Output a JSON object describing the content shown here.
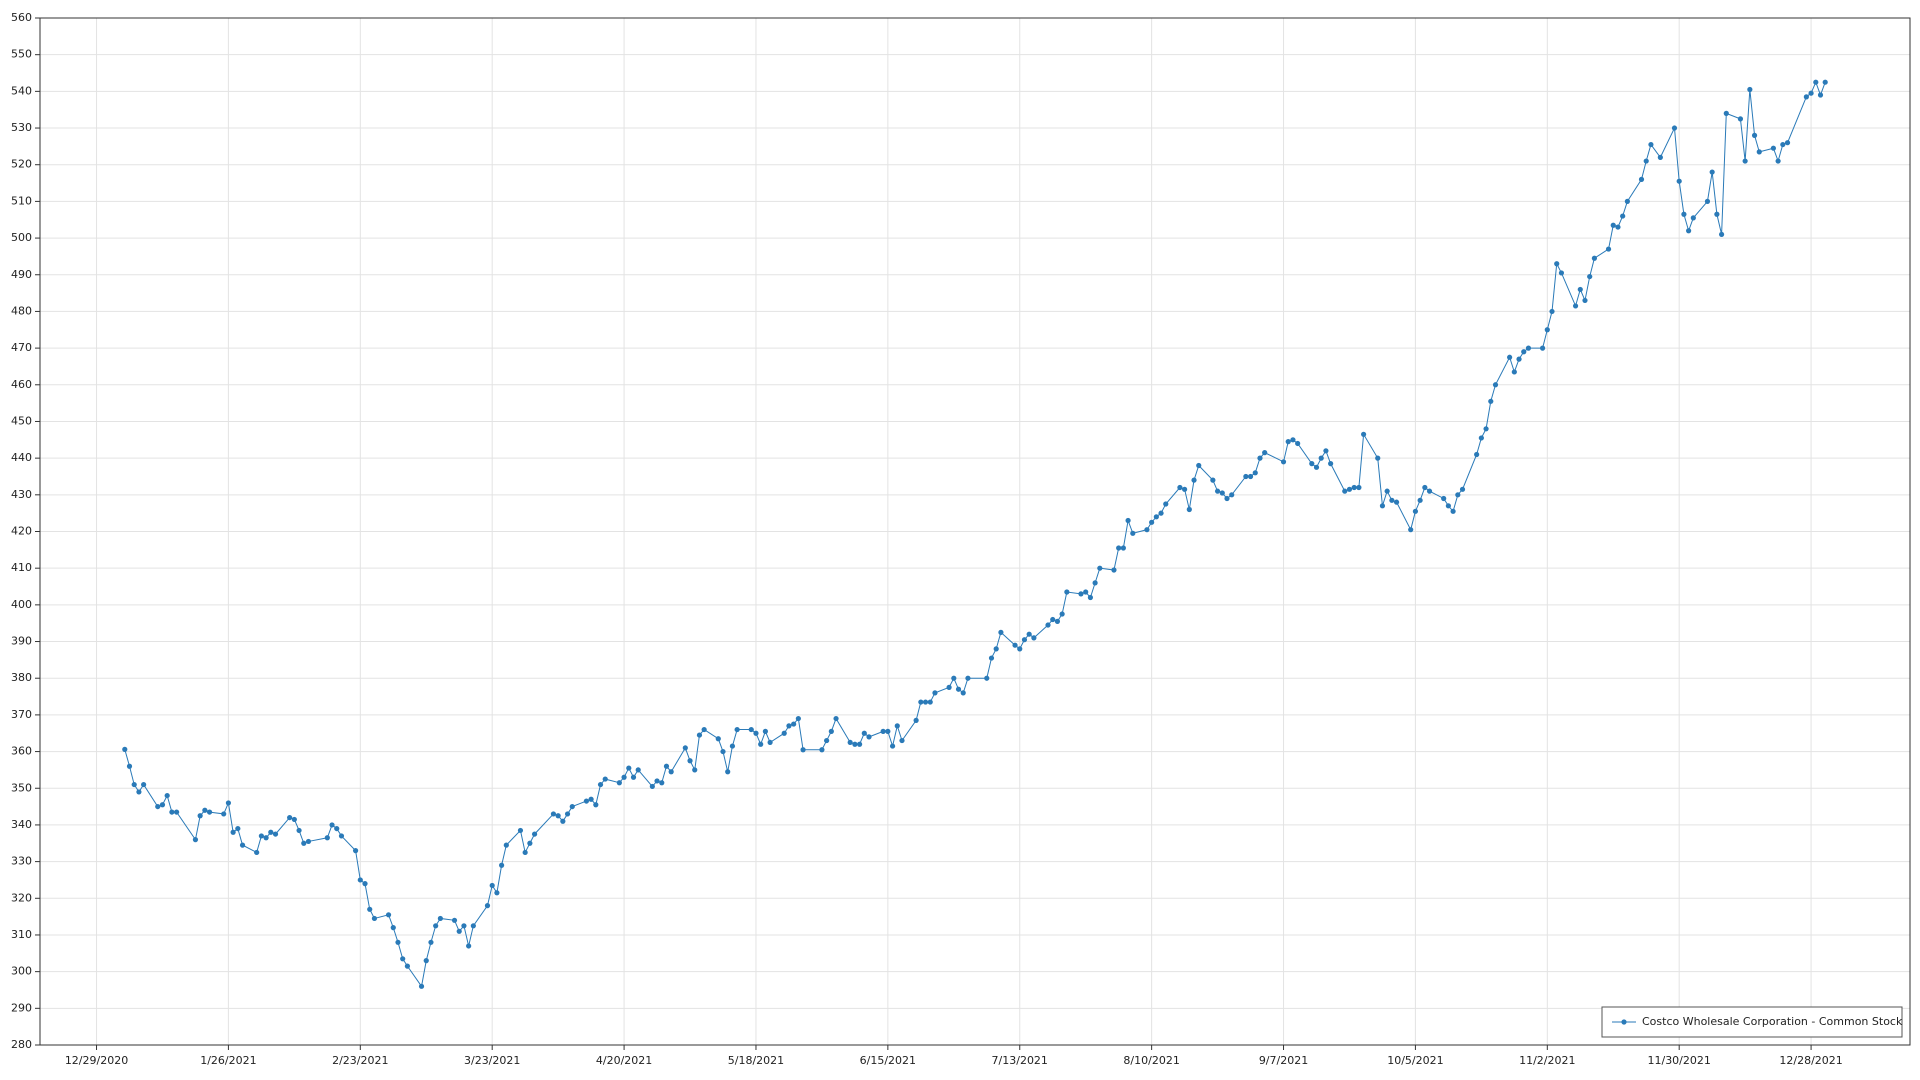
{
  "chart_data": {
    "type": "line",
    "x": [
      "1/4/2021",
      "1/5/2021",
      "1/6/2021",
      "1/7/2021",
      "1/8/2021",
      "1/11/2021",
      "1/12/2021",
      "1/13/2021",
      "1/14/2021",
      "1/15/2021",
      "1/19/2021",
      "1/20/2021",
      "1/21/2021",
      "1/22/2021",
      "1/25/2021",
      "1/26/2021",
      "1/27/2021",
      "1/28/2021",
      "1/29/2021",
      "2/1/2021",
      "2/2/2021",
      "2/3/2021",
      "2/4/2021",
      "2/5/2021",
      "2/8/2021",
      "2/9/2021",
      "2/10/2021",
      "2/11/2021",
      "2/12/2021",
      "2/16/2021",
      "2/17/2021",
      "2/18/2021",
      "2/19/2021",
      "2/22/2021",
      "2/23/2021",
      "2/24/2021",
      "2/25/2021",
      "2/26/2021",
      "3/1/2021",
      "3/2/2021",
      "3/3/2021",
      "3/4/2021",
      "3/5/2021",
      "3/8/2021",
      "3/9/2021",
      "3/10/2021",
      "3/11/2021",
      "3/12/2021",
      "3/15/2021",
      "3/16/2021",
      "3/17/2021",
      "3/18/2021",
      "3/19/2021",
      "3/22/2021",
      "3/23/2021",
      "3/24/2021",
      "3/25/2021",
      "3/26/2021",
      "3/29/2021",
      "3/30/2021",
      "3/31/2021",
      "4/1/2021",
      "4/5/2021",
      "4/6/2021",
      "4/7/2021",
      "4/8/2021",
      "4/9/2021",
      "4/12/2021",
      "4/13/2021",
      "4/14/2021",
      "4/15/2021",
      "4/16/2021",
      "4/19/2021",
      "4/20/2021",
      "4/21/2021",
      "4/22/2021",
      "4/23/2021",
      "4/26/2021",
      "4/27/2021",
      "4/28/2021",
      "4/29/2021",
      "4/30/2021",
      "5/3/2021",
      "5/4/2021",
      "5/5/2021",
      "5/6/2021",
      "5/7/2021",
      "5/10/2021",
      "5/11/2021",
      "5/12/2021",
      "5/13/2021",
      "5/14/2021",
      "5/17/2021",
      "5/18/2021",
      "5/19/2021",
      "5/20/2021",
      "5/21/2021",
      "5/24/2021",
      "5/25/2021",
      "5/26/2021",
      "5/27/2021",
      "5/28/2021",
      "6/1/2021",
      "6/2/2021",
      "6/3/2021",
      "6/4/2021",
      "6/7/2021",
      "6/8/2021",
      "6/9/2021",
      "6/10/2021",
      "6/11/2021",
      "6/14/2021",
      "6/15/2021",
      "6/16/2021",
      "6/17/2021",
      "6/18/2021",
      "6/21/2021",
      "6/22/2021",
      "6/23/2021",
      "6/24/2021",
      "6/25/2021",
      "6/28/2021",
      "6/29/2021",
      "6/30/2021",
      "7/1/2021",
      "7/2/2021",
      "7/6/2021",
      "7/7/2021",
      "7/8/2021",
      "7/9/2021",
      "7/12/2021",
      "7/13/2021",
      "7/14/2021",
      "7/15/2021",
      "7/16/2021",
      "7/19/2021",
      "7/20/2021",
      "7/21/2021",
      "7/22/2021",
      "7/23/2021",
      "7/26/2021",
      "7/27/2021",
      "7/28/2021",
      "7/29/2021",
      "7/30/2021",
      "8/2/2021",
      "8/3/2021",
      "8/4/2021",
      "8/5/2021",
      "8/6/2021",
      "8/9/2021",
      "8/10/2021",
      "8/11/2021",
      "8/12/2021",
      "8/13/2021",
      "8/16/2021",
      "8/17/2021",
      "8/18/2021",
      "8/19/2021",
      "8/20/2021",
      "8/23/2021",
      "8/24/2021",
      "8/25/2021",
      "8/26/2021",
      "8/27/2021",
      "8/30/2021",
      "8/31/2021",
      "9/1/2021",
      "9/2/2021",
      "9/3/2021",
      "9/7/2021",
      "9/8/2021",
      "9/9/2021",
      "9/10/2021",
      "9/13/2021",
      "9/14/2021",
      "9/15/2021",
      "9/16/2021",
      "9/17/2021",
      "9/20/2021",
      "9/21/2021",
      "9/22/2021",
      "9/23/2021",
      "9/24/2021",
      "9/27/2021",
      "9/28/2021",
      "9/29/2021",
      "9/30/2021",
      "10/1/2021",
      "10/4/2021",
      "10/5/2021",
      "10/6/2021",
      "10/7/2021",
      "10/8/2021",
      "10/11/2021",
      "10/12/2021",
      "10/13/2021",
      "10/14/2021",
      "10/15/2021",
      "10/18/2021",
      "10/19/2021",
      "10/20/2021",
      "10/21/2021",
      "10/22/2021",
      "10/25/2021",
      "10/26/2021",
      "10/27/2021",
      "10/28/2021",
      "10/29/2021",
      "11/1/2021",
      "11/2/2021",
      "11/3/2021",
      "11/4/2021",
      "11/5/2021",
      "11/8/2021",
      "11/9/2021",
      "11/10/2021",
      "11/11/2021",
      "11/12/2021",
      "11/15/2021",
      "11/16/2021",
      "11/17/2021",
      "11/18/2021",
      "11/19/2021",
      "11/22/2021",
      "11/23/2021",
      "11/24/2021",
      "11/26/2021",
      "11/29/2021",
      "11/30/2021",
      "12/1/2021",
      "12/2/2021",
      "12/3/2021",
      "12/6/2021",
      "12/7/2021",
      "12/8/2021",
      "12/9/2021",
      "12/10/2021",
      "12/13/2021",
      "12/14/2021",
      "12/15/2021",
      "12/16/2021",
      "12/17/2021",
      "12/20/2021",
      "12/21/2021",
      "12/22/2021",
      "12/23/2021",
      "12/27/2021",
      "12/28/2021",
      "12/29/2021",
      "12/30/2021",
      "12/31/2021"
    ],
    "series": [
      {
        "name": "Costco Wholesale Corporation - Common Stock",
        "color": "#2a7ab8",
        "values": [
          360.6,
          356,
          351,
          349,
          351,
          345,
          345.5,
          348,
          343.5,
          343.5,
          336,
          342.5,
          344,
          343.5,
          343,
          346,
          338,
          339,
          334.5,
          332.5,
          337,
          336.5,
          338,
          337.5,
          342,
          341.5,
          338.5,
          335,
          335.5,
          336.5,
          340,
          339,
          337,
          333,
          325,
          324,
          317,
          314.5,
          315.5,
          312,
          308,
          303.5,
          301.5,
          296,
          303,
          308,
          312.5,
          314.5,
          314,
          311,
          312.5,
          307,
          312.5,
          318,
          323.5,
          321.5,
          329,
          334.5,
          338.5,
          332.5,
          335,
          337.5,
          343,
          342.5,
          341,
          343,
          345,
          346.5,
          347,
          345.5,
          351,
          352.5,
          351.5,
          353,
          355.5,
          353,
          355,
          350.5,
          352,
          351.5,
          356,
          354.5,
          361,
          357.5,
          355,
          364.5,
          366,
          363.5,
          360,
          354.5,
          361.5,
          366,
          366,
          365,
          362,
          365.5,
          362.5,
          365,
          367,
          367.5,
          369,
          360.5,
          360.5,
          363,
          365.5,
          369,
          362.5,
          362,
          362,
          365,
          364,
          365.5,
          365.5,
          361.5,
          367,
          363,
          368.5,
          373.5,
          373.5,
          373.5,
          376,
          377.5,
          380,
          377,
          376,
          380,
          380,
          385.5,
          388,
          392.5,
          389,
          388,
          390.5,
          392,
          391,
          394.5,
          396,
          395.5,
          397.5,
          403.5,
          403,
          403.5,
          402,
          406,
          410,
          409.5,
          415.5,
          415.5,
          423,
          419.5,
          420.5,
          422.5,
          424,
          425,
          427.5,
          432,
          431.5,
          426,
          434,
          438,
          434,
          431,
          430.5,
          429,
          430,
          435,
          435,
          436,
          440,
          441.5,
          439,
          444.5,
          445,
          444,
          438.5,
          437.5,
          440,
          442,
          438.5,
          431,
          431.5,
          432,
          432,
          446.5,
          440,
          427,
          431,
          428.5,
          428,
          420.5,
          425.5,
          428.5,
          432,
          431,
          429,
          427,
          425.5,
          430,
          431.5,
          441,
          445.5,
          448,
          455.5,
          460,
          467.5,
          463.5,
          467,
          469,
          470,
          470,
          475,
          480,
          493,
          490.5,
          481.5,
          486,
          483,
          489.5,
          494.5,
          497,
          503.5,
          503,
          506,
          510,
          516,
          521,
          525.5,
          522,
          530,
          515.5,
          506.5,
          502,
          505.5,
          510,
          518,
          506.5,
          501,
          534,
          532.5,
          521,
          540.5,
          528,
          523.5,
          524.5,
          521,
          525.5,
          526,
          538.5,
          539.5,
          542.5,
          539,
          542.5
        ]
      }
    ],
    "xlim": [
      "12/17/2020",
      "1/18/2022"
    ],
    "xticks": [
      "12/29/2020",
      "1/26/2021",
      "2/23/2021",
      "3/23/2021",
      "4/20/2021",
      "5/18/2021",
      "6/15/2021",
      "7/13/2021",
      "8/10/2021",
      "9/7/2021",
      "10/5/2021",
      "11/2/2021",
      "11/30/2021",
      "12/28/2021"
    ],
    "ylim": [
      280,
      560
    ],
    "yticks": [
      280,
      290,
      300,
      310,
      320,
      330,
      340,
      350,
      360,
      370,
      380,
      390,
      400,
      410,
      420,
      430,
      440,
      450,
      460,
      470,
      480,
      490,
      500,
      510,
      520,
      530,
      540,
      550,
      560
    ],
    "grid": true,
    "legend": "lower right"
  }
}
